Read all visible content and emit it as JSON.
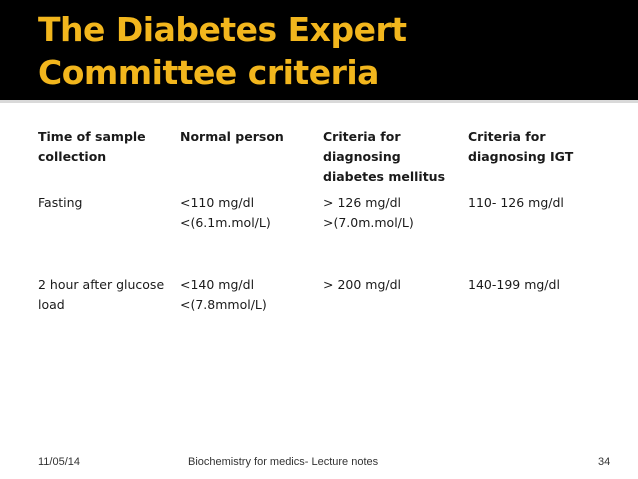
{
  "slide": {
    "title": "The Diabetes Expert Committee criteria",
    "colors": {
      "title_bar": "#000000",
      "title_text": "#f2b61d",
      "body_text": "#1a1a1a"
    }
  },
  "table": {
    "headers": [
      "Time of sample\ncollection",
      "Normal person",
      " Criteria for\ndiagnosing\ndiabetes mellitus",
      "Criteria for\ndiagnosing IGT"
    ],
    "rows": [
      {
        "time": "Fasting",
        "normal": "<110 mg/dl\n<(6.1m.mol/L)",
        "diabetes": "> 126 mg/dl\n>(7.0m.mol/L)",
        "igt": "110- 126 mg/dl"
      },
      {
        "time": "2 hour after glucose\nload",
        "normal": "<140 mg/dl\n<(7.8mmol/L)",
        "diabetes": "> 200 mg/dl",
        "igt": "140-199 mg/dl"
      }
    ]
  },
  "footer": {
    "date": "11/05/14",
    "title": "Biochemistry for medics- Lecture notes",
    "page": "34"
  }
}
